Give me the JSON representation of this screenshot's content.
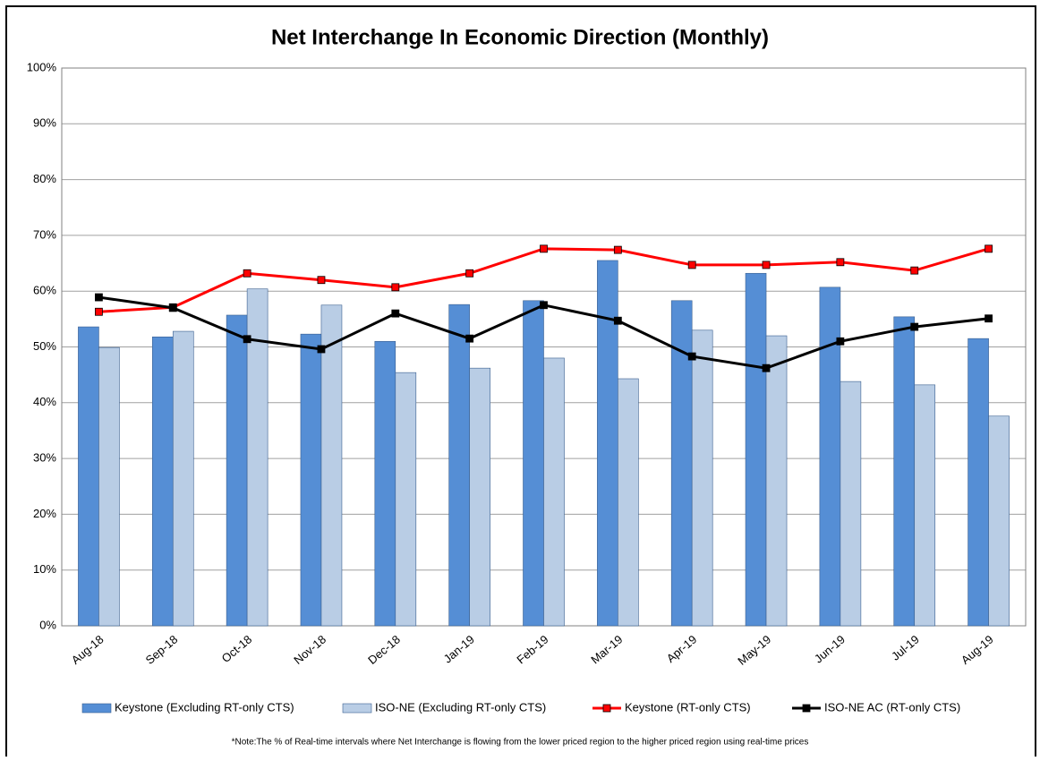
{
  "chart_data": {
    "type": "bar_line",
    "title": "Net Interchange In Economic Direction (Monthly)",
    "note": "*Note:The % of Real-time intervals where Net Interchange is flowing from the lower priced region to the higher priced region using real-time prices",
    "categories": [
      "Aug-18",
      "Sep-18",
      "Oct-18",
      "Nov-18",
      "Dec-18",
      "Jan-19",
      "Feb-19",
      "Mar-19",
      "Apr-19",
      "May-19",
      "Jun-19",
      "Jul-19",
      "Aug-19"
    ],
    "series": [
      {
        "name": "Keystone (Excluding RT-only CTS)",
        "kind": "bar",
        "color": "#558ed5",
        "values": [
          53.6,
          51.8,
          55.7,
          52.3,
          51.0,
          57.6,
          58.3,
          65.5,
          58.3,
          63.2,
          60.7,
          55.4,
          51.5
        ]
      },
      {
        "name": "ISO-NE (Excluding RT-only CTS)",
        "kind": "bar",
        "color": "#b9cde5",
        "values": [
          49.9,
          52.8,
          60.4,
          57.5,
          45.4,
          46.2,
          48.0,
          44.3,
          53.0,
          52.0,
          43.8,
          43.2,
          37.6
        ]
      },
      {
        "name": "Keystone (RT-only CTS)",
        "kind": "line",
        "color": "#ff0000",
        "values": [
          56.3,
          57.1,
          63.2,
          62.0,
          60.7,
          63.2,
          67.6,
          67.4,
          64.7,
          64.7,
          65.2,
          63.7,
          67.6
        ]
      },
      {
        "name": "ISO-NE AC (RT-only CTS)",
        "kind": "line",
        "color": "#000000",
        "values": [
          58.9,
          57.0,
          51.4,
          49.6,
          56.0,
          51.5,
          57.5,
          54.7,
          48.3,
          46.2,
          51.0,
          53.6,
          55.1
        ]
      }
    ],
    "ylim": [
      0,
      100
    ],
    "yticks": [
      {
        "value": 0,
        "label": "0%"
      },
      {
        "value": 10,
        "label": "10%"
      },
      {
        "value": 20,
        "label": "20%"
      },
      {
        "value": 30,
        "label": "30%"
      },
      {
        "value": 40,
        "label": "40%"
      },
      {
        "value": 50,
        "label": "50%"
      },
      {
        "value": 60,
        "label": "60%"
      },
      {
        "value": 70,
        "label": "70%"
      },
      {
        "value": 80,
        "label": "80%"
      },
      {
        "value": 90,
        "label": "90%"
      },
      {
        "value": 100,
        "label": "100%"
      }
    ],
    "grid": true
  }
}
